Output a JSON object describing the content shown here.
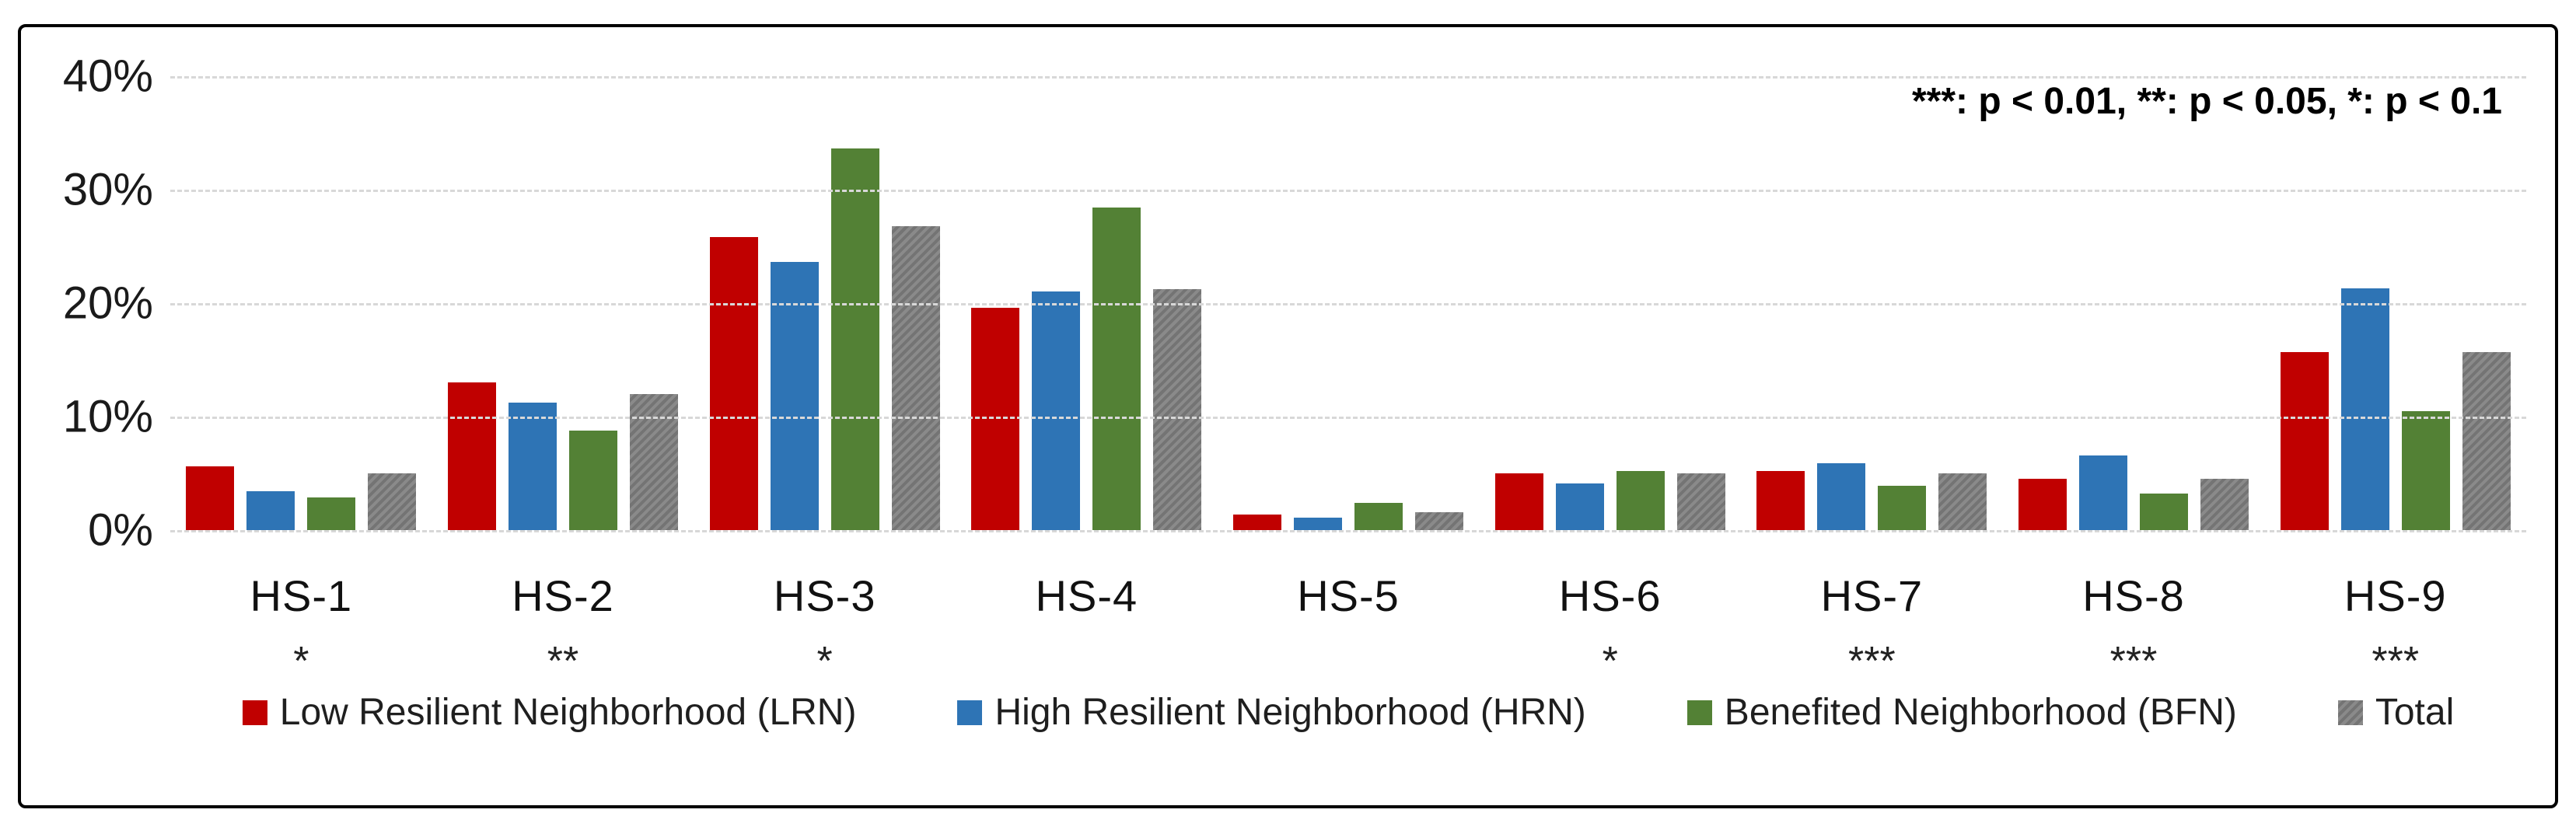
{
  "annotation": "***: p < 0.01, **: p < 0.05, *: p < 0.1",
  "colors": {
    "lrn_red": "#c00000",
    "hrn_blue": "#2e74b5",
    "bfn_green": "#538135",
    "total_gray": "#7f7f7f",
    "gridline": "#d8d8d8",
    "border": "#000000"
  },
  "chart_data": {
    "type": "bar",
    "categories": [
      "HS-1",
      "HS-2",
      "HS-3",
      "HS-4",
      "HS-5",
      "HS-6",
      "HS-7",
      "HS-8",
      "HS-9"
    ],
    "significance": [
      "*",
      "**",
      "*",
      "",
      "",
      "*",
      "***",
      "***",
      "***"
    ],
    "series": [
      {
        "name": "Low Resilient Neighborhood (LRN)",
        "color": "#c00000",
        "textured": false,
        "values": [
          5.6,
          13.0,
          25.8,
          19.6,
          1.4,
          5.0,
          5.2,
          4.5,
          15.7
        ]
      },
      {
        "name": "High Resilient Neighborhood (HRN)",
        "color": "#2e74b5",
        "textured": false,
        "values": [
          3.4,
          11.2,
          23.6,
          21.0,
          1.1,
          4.1,
          5.9,
          6.6,
          21.3
        ]
      },
      {
        "name": "Benefited Neighborhood (BFN)",
        "color": "#538135",
        "textured": false,
        "values": [
          2.9,
          8.8,
          33.6,
          28.4,
          2.4,
          5.2,
          3.9,
          3.2,
          10.5
        ]
      },
      {
        "name": "Total",
        "color": "#7f7f7f",
        "textured": true,
        "values": [
          5.0,
          12.0,
          26.8,
          21.2,
          1.6,
          5.0,
          5.0,
          4.5,
          15.7
        ]
      }
    ],
    "title": "",
    "xlabel": "",
    "ylabel": "",
    "ylim": [
      0,
      40
    ],
    "yticks": [
      "40%",
      "30%",
      "20%",
      "10%",
      "0%"
    ],
    "ytick_values": [
      40,
      30,
      20,
      10,
      0
    ],
    "grid": true,
    "legend_position": "bottom",
    "annotation": "***: p < 0.01, **: p < 0.05, *: p < 0.1"
  }
}
